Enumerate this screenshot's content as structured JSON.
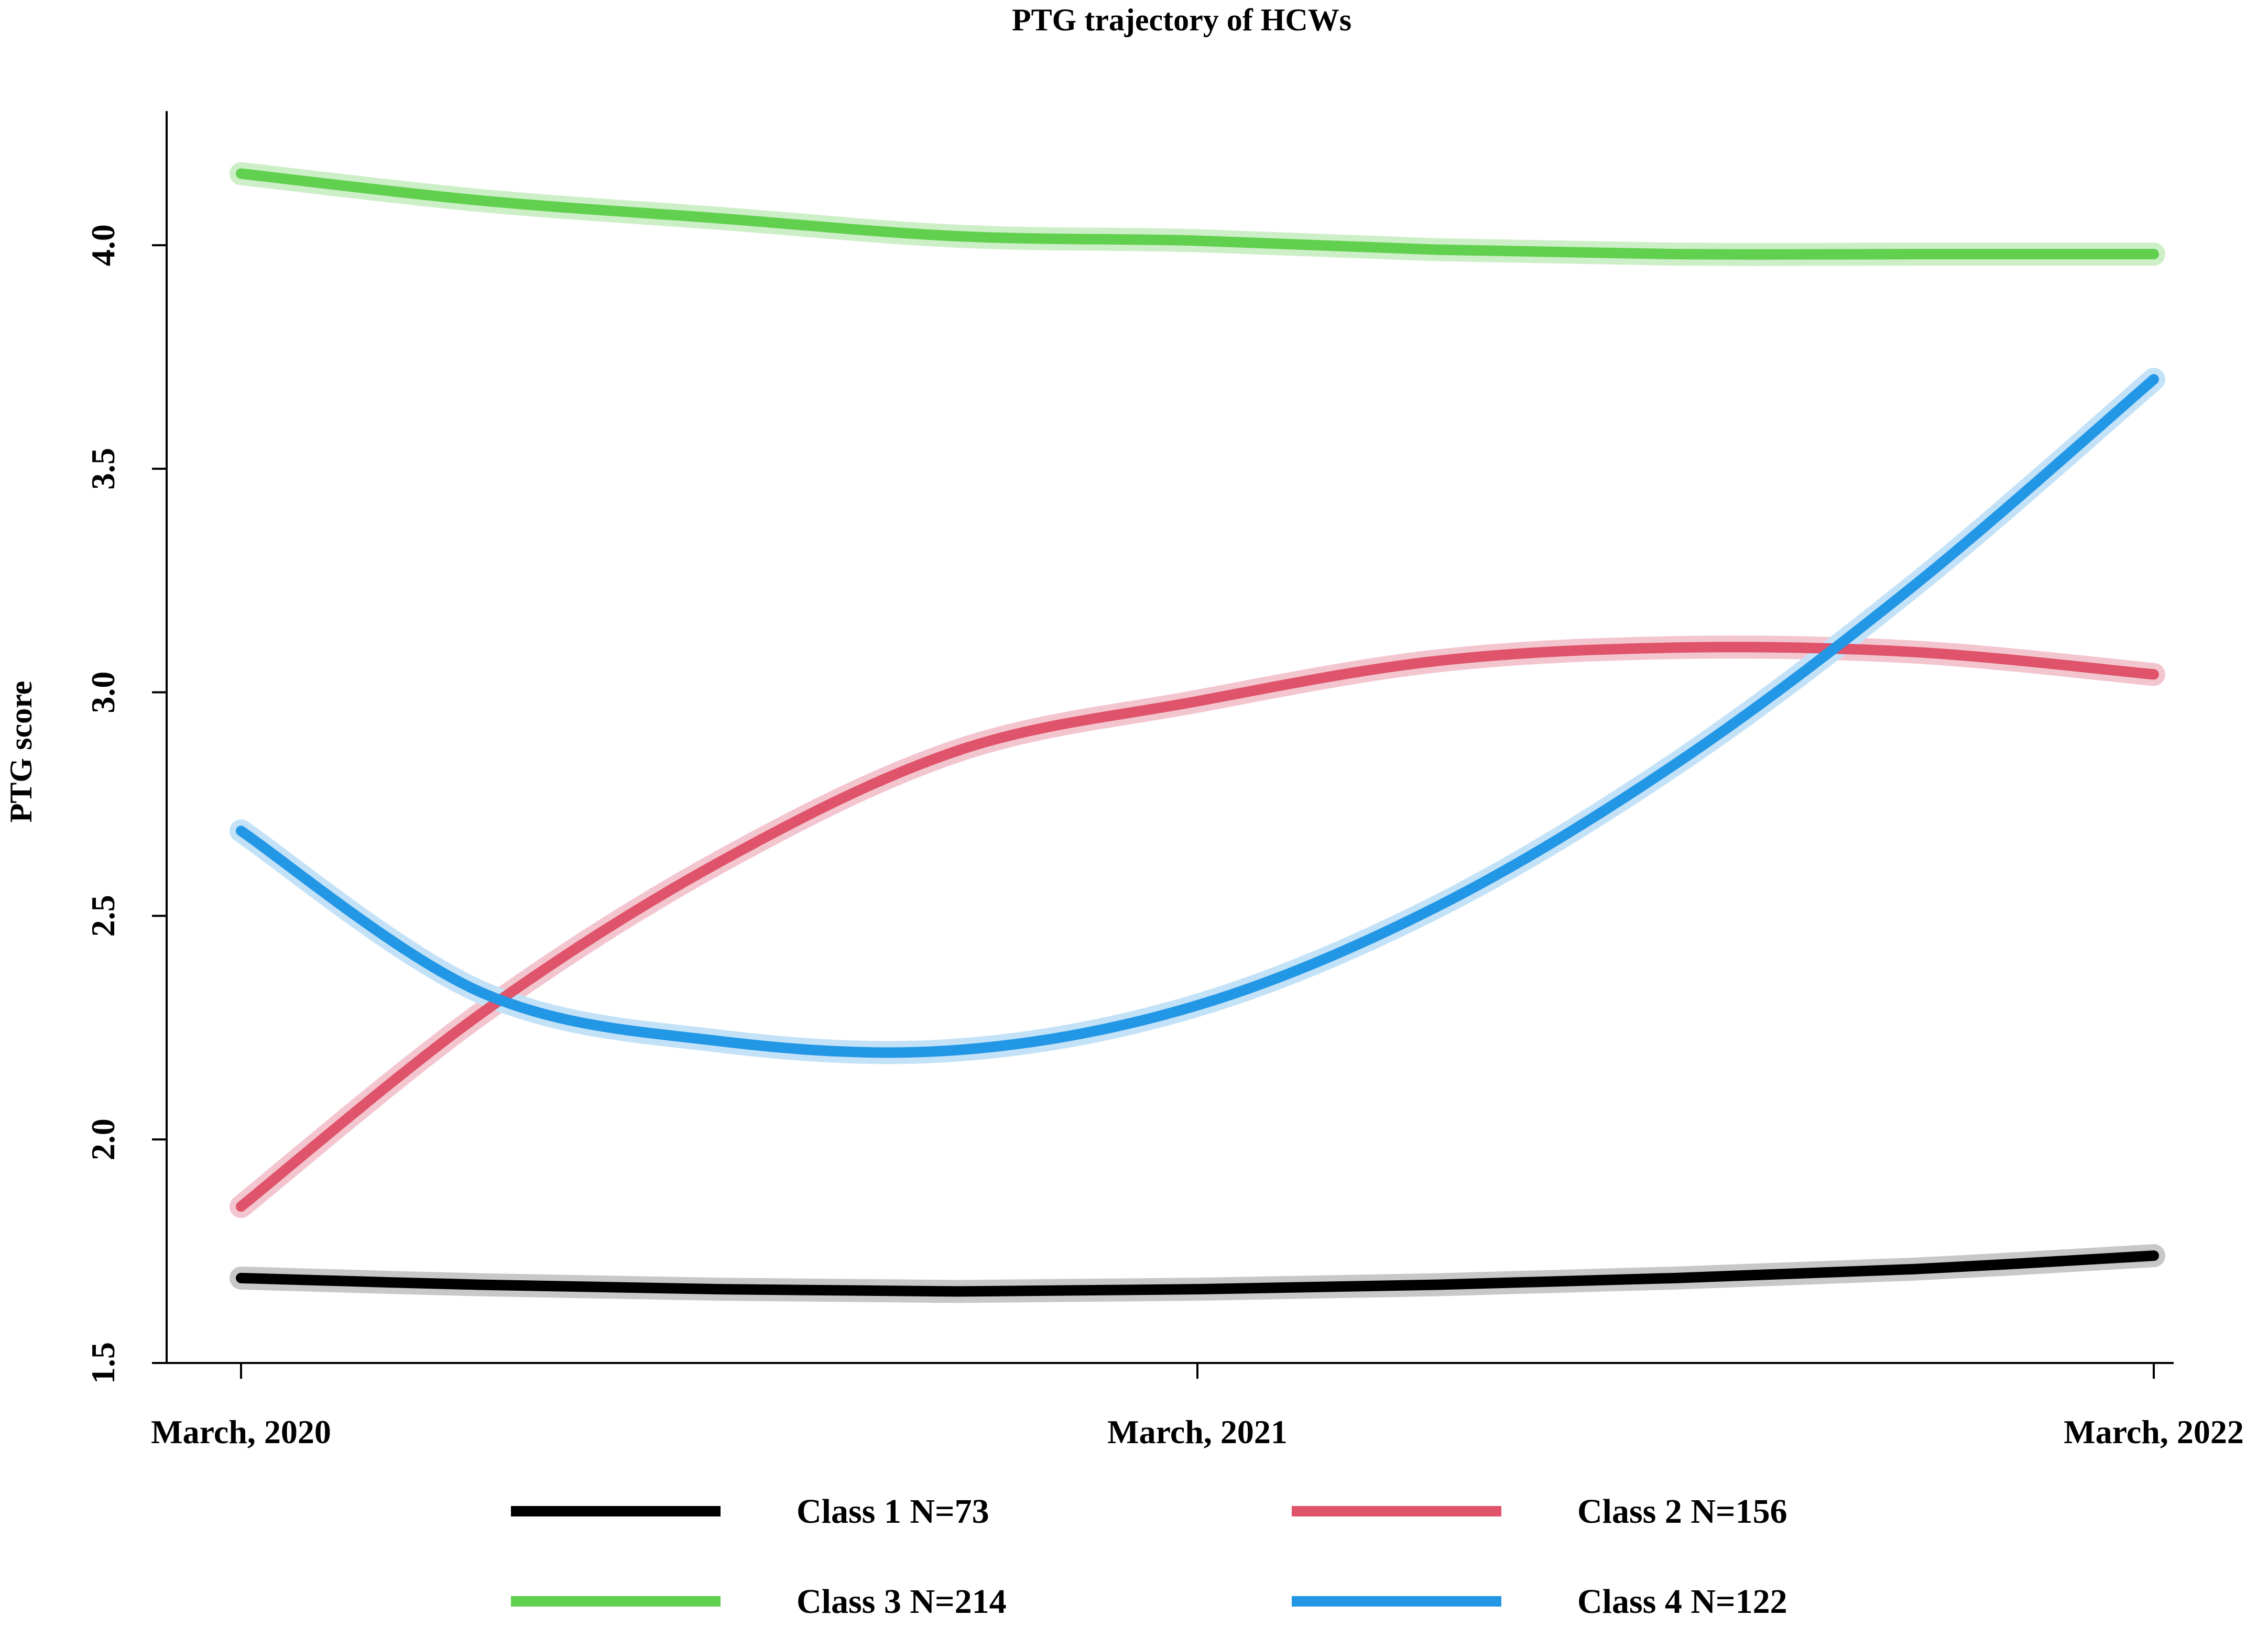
{
  "chart_data": {
    "type": "line",
    "title": "PTG trajectory of HCWs",
    "xlabel": "",
    "ylabel": "PTG score",
    "x": [
      0,
      0.25,
      0.5,
      0.75,
      1.0,
      1.25,
      1.5,
      1.75,
      2.0
    ],
    "x_ticks": [
      {
        "value": 0,
        "label": "March, 2020"
      },
      {
        "value": 1,
        "label": "March, 2021"
      },
      {
        "value": 2,
        "label": "March, 2022"
      }
    ],
    "y_ticks": [
      {
        "value": 1.5,
        "label": "1.5"
      },
      {
        "value": 2.0,
        "label": "2.0"
      },
      {
        "value": 2.5,
        "label": "2.5"
      },
      {
        "value": 3.0,
        "label": "3.0"
      },
      {
        "value": 3.5,
        "label": "3.5"
      },
      {
        "value": 4.0,
        "label": "4.0"
      }
    ],
    "xlim": [
      -0.08,
      2.0
    ],
    "ylim": [
      1.5,
      4.3
    ],
    "grid": false,
    "legend_position": "bottom",
    "series": [
      {
        "name": "Class 1 N=73",
        "color": "#000000",
        "band": "#c8c8c8",
        "values": [
          1.69,
          1.675,
          1.665,
          1.66,
          1.665,
          1.675,
          1.69,
          1.71,
          1.74
        ]
      },
      {
        "name": "Class 2 N=156",
        "color": "#df536b",
        "band": "#f3c6cf",
        "values": [
          1.85,
          2.28,
          2.62,
          2.87,
          2.98,
          3.07,
          3.1,
          3.09,
          3.04
        ]
      },
      {
        "name": "Class 3 N=214",
        "color": "#61d04f",
        "band": "#cdefc7",
        "values": [
          4.16,
          4.1,
          4.06,
          4.02,
          4.01,
          3.99,
          3.98,
          3.98,
          3.98
        ]
      },
      {
        "name": "Class 4 N=122",
        "color": "#2297e6",
        "band": "#c4e2f7",
        "values": [
          2.69,
          2.33,
          2.22,
          2.2,
          2.3,
          2.52,
          2.84,
          3.24,
          3.7
        ]
      }
    ]
  }
}
